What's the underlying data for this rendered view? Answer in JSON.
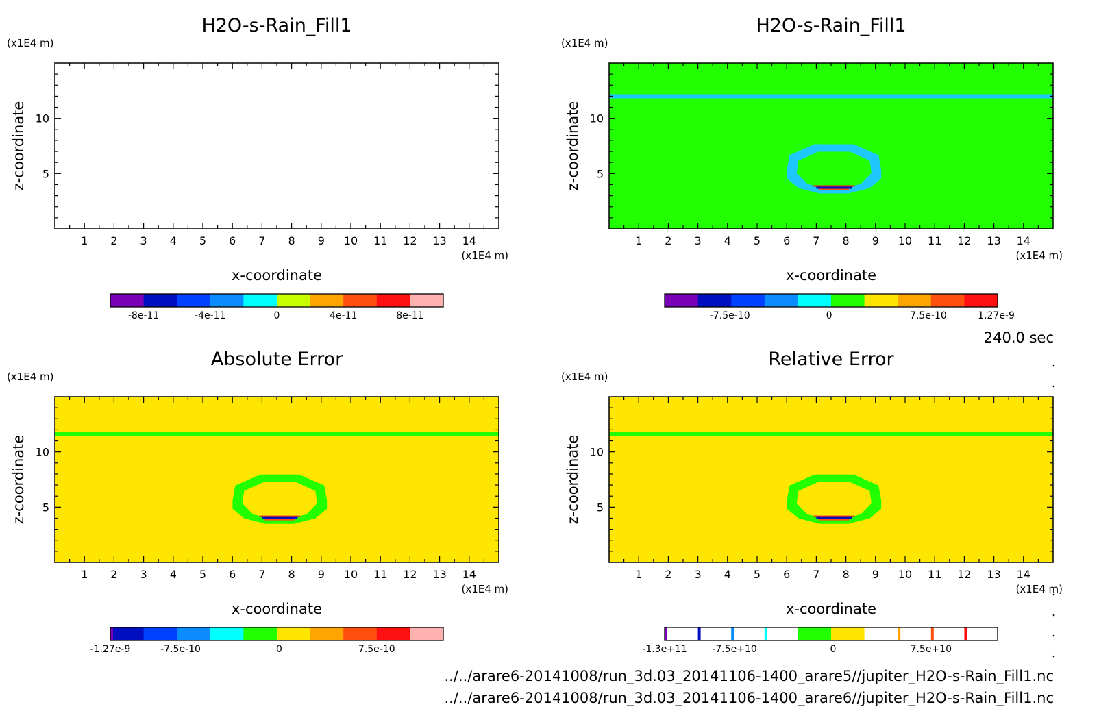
{
  "chart_data": [
    {
      "type": "heatmap",
      "title": "H2O-s-Rain_Fill1",
      "xlabel": "x-coordinate",
      "ylabel": "z-coordinate",
      "x_unit": "(x1E4 m)",
      "y_unit": "(x1E4 m)",
      "xlim": [
        0,
        15
      ],
      "ylim": [
        0,
        15
      ],
      "x_ticks": [
        "1",
        "2",
        "3",
        "4",
        "5",
        "6",
        "7",
        "8",
        "9",
        "10",
        "11",
        "12",
        "13",
        "14"
      ],
      "y_ticks": [
        "5",
        "10"
      ],
      "field": "empty",
      "colorbar": {
        "colors": [
          "#7a00b8",
          "#0010c0",
          "#0040ff",
          "#0a8cff",
          "#00ffff",
          "#c8ff00",
          "#ffa500",
          "#ff5010",
          "#ff1010",
          "#ffb0b0"
        ],
        "labels": [
          {
            "text": "-8e-11",
            "frac": 0.1
          },
          {
            "text": "-4e-11",
            "frac": 0.3
          },
          {
            "text": "0",
            "frac": 0.5
          },
          {
            "text": "4e-11",
            "frac": 0.7
          },
          {
            "text": "8e-11",
            "frac": 0.9
          }
        ],
        "edge_stubs": []
      }
    },
    {
      "type": "heatmap",
      "title": "H2O-s-Rain_Fill1",
      "xlabel": "x-coordinate",
      "ylabel": "z-coordinate",
      "x_unit": "(x1E4 m)",
      "y_unit": "(x1E4 m)",
      "xlim": [
        0,
        15
      ],
      "ylim": [
        0,
        15
      ],
      "x_ticks": [
        "1",
        "2",
        "3",
        "4",
        "5",
        "6",
        "7",
        "8",
        "9",
        "10",
        "11",
        "12",
        "13",
        "14"
      ],
      "y_ticks": [
        "5",
        "10"
      ],
      "field": "anomaly",
      "background": "#22ff00",
      "band": {
        "z": 12.0,
        "color": "#1ec8ff"
      },
      "ring": {
        "x_center": 7.6,
        "z_center": 5.3,
        "color": "#1ec8ff"
      },
      "colorbar": {
        "colors": [
          "#7a00b8",
          "#0010c0",
          "#0040ff",
          "#0a8cff",
          "#00ffff",
          "#22ff00",
          "#ffe600",
          "#ffa500",
          "#ff5010",
          "#ff1010"
        ],
        "labels": [
          {
            "text": "-7.5e-10",
            "frac": 0.196
          },
          {
            "text": "0",
            "frac": 0.494
          },
          {
            "text": "7.5e-10",
            "frac": 0.792
          },
          {
            "text": "1.27e-9",
            "frac": 0.996
          }
        ],
        "edge_stubs": []
      }
    },
    {
      "type": "heatmap",
      "title": "Absolute Error",
      "xlabel": "x-coordinate",
      "ylabel": "z-coordinate",
      "x_unit": "(x1E4 m)",
      "y_unit": "(x1E4 m)",
      "xlim": [
        0,
        15
      ],
      "ylim": [
        0,
        15
      ],
      "x_ticks": [
        "1",
        "2",
        "3",
        "4",
        "5",
        "6",
        "7",
        "8",
        "9",
        "10",
        "11",
        "12",
        "13",
        "14"
      ],
      "y_ticks": [
        "5",
        "10"
      ],
      "field": "anomaly",
      "background": "#ffe600",
      "band": {
        "z": 11.6,
        "color": "#22ff00"
      },
      "ring": {
        "x_center": 7.6,
        "z_center": 5.6,
        "color": "#22ff00"
      },
      "colorbar": {
        "colors": [
          "#0010c0",
          "#0040ff",
          "#0a8cff",
          "#00ffff",
          "#22ff00",
          "#ffe600",
          "#ffa500",
          "#ff5010",
          "#ff1010",
          "#ffb0b0"
        ],
        "labels": [
          {
            "text": "-1.27e-9",
            "frac": 0.0
          },
          {
            "text": "-7.5e-10",
            "frac": 0.211
          },
          {
            "text": "0",
            "frac": 0.507
          },
          {
            "text": "7.5e-10",
            "frac": 0.8
          }
        ],
        "edge_stubs": [
          {
            "frac": 0.0,
            "color": "#7a00b8"
          }
        ]
      }
    },
    {
      "type": "heatmap",
      "title": "Relative Error",
      "xlabel": "x-coordinate",
      "ylabel": "z-coordinate",
      "x_unit": "(x1E4 m)",
      "y_unit": "(x1E4 m)",
      "xlim": [
        0,
        15
      ],
      "ylim": [
        0,
        15
      ],
      "x_ticks": [
        "1",
        "2",
        "3",
        "4",
        "5",
        "6",
        "7",
        "8",
        "9",
        "10",
        "11",
        "12",
        "13",
        "14"
      ],
      "y_ticks": [
        "5",
        "10"
      ],
      "field": "anomaly",
      "background": "#ffe600",
      "band": {
        "z": 11.6,
        "color": "#22ff00"
      },
      "ring": {
        "x_center": 7.6,
        "z_center": 5.6,
        "color": "#22ff00"
      },
      "colorbar": {
        "colors": [
          "#ffffff",
          "#ffffff",
          "#ffffff",
          "#ffffff",
          "#22ff00",
          "#ffe600",
          "#ffffff",
          "#ffffff",
          "#ffffff",
          "#ffffff"
        ],
        "labels": [
          {
            "text": "-1.3e+11",
            "frac": 0.0
          },
          {
            "text": "-7.5e+10",
            "frac": 0.21
          },
          {
            "text": "0",
            "frac": 0.506
          },
          {
            "text": "7.5e+10",
            "frac": 0.8
          }
        ],
        "edge_stubs": [
          {
            "frac": 0.0,
            "color": "#7a00b8"
          },
          {
            "frac": 0.1,
            "color": "#0010c0"
          },
          {
            "frac": 0.2,
            "color": "#0a8cff"
          },
          {
            "frac": 0.3,
            "color": "#00ffff"
          },
          {
            "frac": 0.7,
            "color": "#ffa500"
          },
          {
            "frac": 0.8,
            "color": "#ff5010"
          },
          {
            "frac": 0.9,
            "color": "#ff1010"
          }
        ]
      }
    }
  ],
  "time_label": "240.0 sec",
  "footer": {
    "file_1": "../../arare6-20141008/run_3d.03_20141106-1400_arare5//jupiter_H2O-s-Rain_Fill1.nc",
    "file_2": "../../arare6-20141008/run_3d.03_20141106-1400_arare6//jupiter_H2O-s-Rain_Fill1.nc"
  }
}
